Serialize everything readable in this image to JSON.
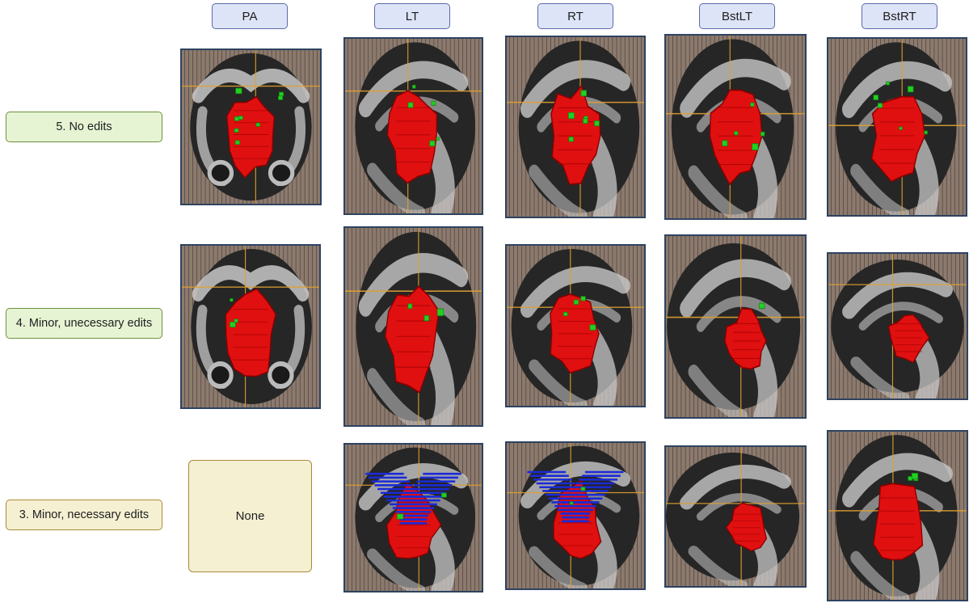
{
  "columns": [
    "PA",
    "LT",
    "RT",
    "BstLT",
    "BstRT"
  ],
  "rows": [
    {
      "label": "5. No edits",
      "tone": "green"
    },
    {
      "label": "4. Minor, unecessary edits",
      "tone": "green"
    },
    {
      "label": "3. Minor, necessary edits",
      "tone": "tan"
    }
  ],
  "none_cell": "None",
  "colors": {
    "header_fill": "#dde4f7",
    "header_border": "#5b6aa8",
    "green_label_fill": "#e6f4d4",
    "tan_label_fill": "#f5f0d2",
    "structure_red": "#e01010",
    "structure_green": "#22d022",
    "structure_blue": "#1a2ad8",
    "crosshair": "#e0a030"
  },
  "panels": [
    {
      "name": "panel-r5-pa",
      "view": "pa",
      "green": 8,
      "blue": false,
      "inset": false
    },
    {
      "name": "panel-r5-lt",
      "view": "lat",
      "green": 5,
      "blue": false,
      "inset": false
    },
    {
      "name": "panel-r5-rt",
      "view": "lat",
      "green": 6,
      "blue": false,
      "inset": false
    },
    {
      "name": "panel-r5-bstlt",
      "view": "lat",
      "green": 5,
      "blue": false,
      "inset": false
    },
    {
      "name": "panel-r5-bstrt",
      "view": "lat",
      "green": 6,
      "blue": false,
      "inset": false
    },
    {
      "name": "panel-r4-pa",
      "view": "pa",
      "green": 3,
      "blue": false,
      "inset": false
    },
    {
      "name": "panel-r4-lt",
      "view": "lat",
      "green": 3,
      "blue": false,
      "inset": false
    },
    {
      "name": "panel-r4-rt",
      "view": "lat",
      "green": 4,
      "blue": false,
      "inset": false
    },
    {
      "name": "panel-r4-bstlt",
      "view": "lat",
      "green": 1,
      "blue": false,
      "inset": true
    },
    {
      "name": "panel-r4-bstrt",
      "view": "lat",
      "green": 0,
      "blue": false,
      "inset": true
    },
    {
      "name": "panel-r3-lt",
      "view": "lat",
      "green": 2,
      "blue": true,
      "inset": false
    },
    {
      "name": "panel-r3-rt",
      "view": "lat",
      "green": 2,
      "blue": true,
      "inset": false
    },
    {
      "name": "panel-r3-bstlt",
      "view": "lat",
      "green": 0,
      "blue": false,
      "inset": true
    },
    {
      "name": "panel-r3-bstrt",
      "view": "lat",
      "green": 3,
      "blue": false,
      "inset": false
    }
  ]
}
